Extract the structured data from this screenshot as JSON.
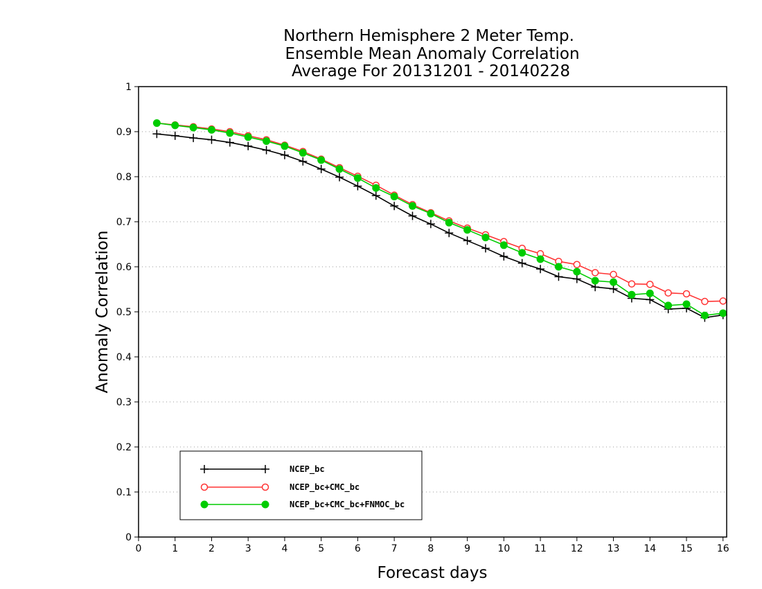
{
  "chart_data": {
    "type": "line",
    "title_lines": [
      "Northern Hemisphere 2 Meter Temp.",
      "Ensemble Mean Anomaly Correlation",
      "Average For 20131201 - 20140228"
    ],
    "xlabel": "Forecast days",
    "ylabel": "Anomaly Correlation",
    "xlim": [
      0,
      16.1
    ],
    "ylim": [
      0,
      1
    ],
    "xticks": [
      "0",
      "1",
      "2",
      "3",
      "4",
      "5",
      "6",
      "7",
      "8",
      "9",
      "10",
      "11",
      "12",
      "13",
      "14",
      "15",
      "16"
    ],
    "yticks": [
      "0",
      "0.1",
      "0.2",
      "0.3",
      "0.4",
      "0.5",
      "0.6",
      "0.7",
      "0.8",
      "0.9",
      "1"
    ],
    "grid": "horizontal dotted",
    "legend_position": "bottom-left",
    "x": [
      0.5,
      1,
      1.5,
      2,
      2.5,
      3,
      3.5,
      4,
      4.5,
      5,
      5.5,
      6,
      6.5,
      7,
      7.5,
      8,
      8.5,
      9,
      9.5,
      10,
      10.5,
      11,
      11.5,
      12,
      12.5,
      13,
      13.5,
      14,
      14.5,
      15,
      15.5,
      16
    ],
    "series": [
      {
        "name": "NCEP_bc",
        "color": "#000000",
        "marker": "plus",
        "values": [
          0.895,
          0.891,
          0.886,
          0.882,
          0.876,
          0.868,
          0.859,
          0.848,
          0.834,
          0.817,
          0.799,
          0.779,
          0.758,
          0.735,
          0.713,
          0.695,
          0.675,
          0.658,
          0.641,
          0.623,
          0.608,
          0.595,
          0.578,
          0.573,
          0.555,
          0.551,
          0.53,
          0.527,
          0.506,
          0.508,
          0.487,
          0.493
        ]
      },
      {
        "name": "NCEP_bc+CMC_bc",
        "color": "#ff3333",
        "marker": "open-circle",
        "values": [
          0.919,
          0.915,
          0.911,
          0.906,
          0.9,
          0.891,
          0.882,
          0.87,
          0.856,
          0.839,
          0.82,
          0.801,
          0.781,
          0.759,
          0.738,
          0.72,
          0.702,
          0.686,
          0.671,
          0.656,
          0.641,
          0.629,
          0.612,
          0.605,
          0.587,
          0.583,
          0.562,
          0.561,
          0.542,
          0.54,
          0.523,
          0.524
        ]
      },
      {
        "name": "NCEP_bc+CMC_bc+FNMOC_bc",
        "color": "#00cc00",
        "marker": "filled-circle",
        "values": [
          0.919,
          0.914,
          0.909,
          0.904,
          0.897,
          0.888,
          0.879,
          0.868,
          0.853,
          0.837,
          0.817,
          0.797,
          0.775,
          0.756,
          0.735,
          0.718,
          0.698,
          0.682,
          0.665,
          0.648,
          0.631,
          0.617,
          0.6,
          0.589,
          0.569,
          0.566,
          0.538,
          0.541,
          0.514,
          0.517,
          0.492,
          0.497
        ]
      }
    ]
  }
}
